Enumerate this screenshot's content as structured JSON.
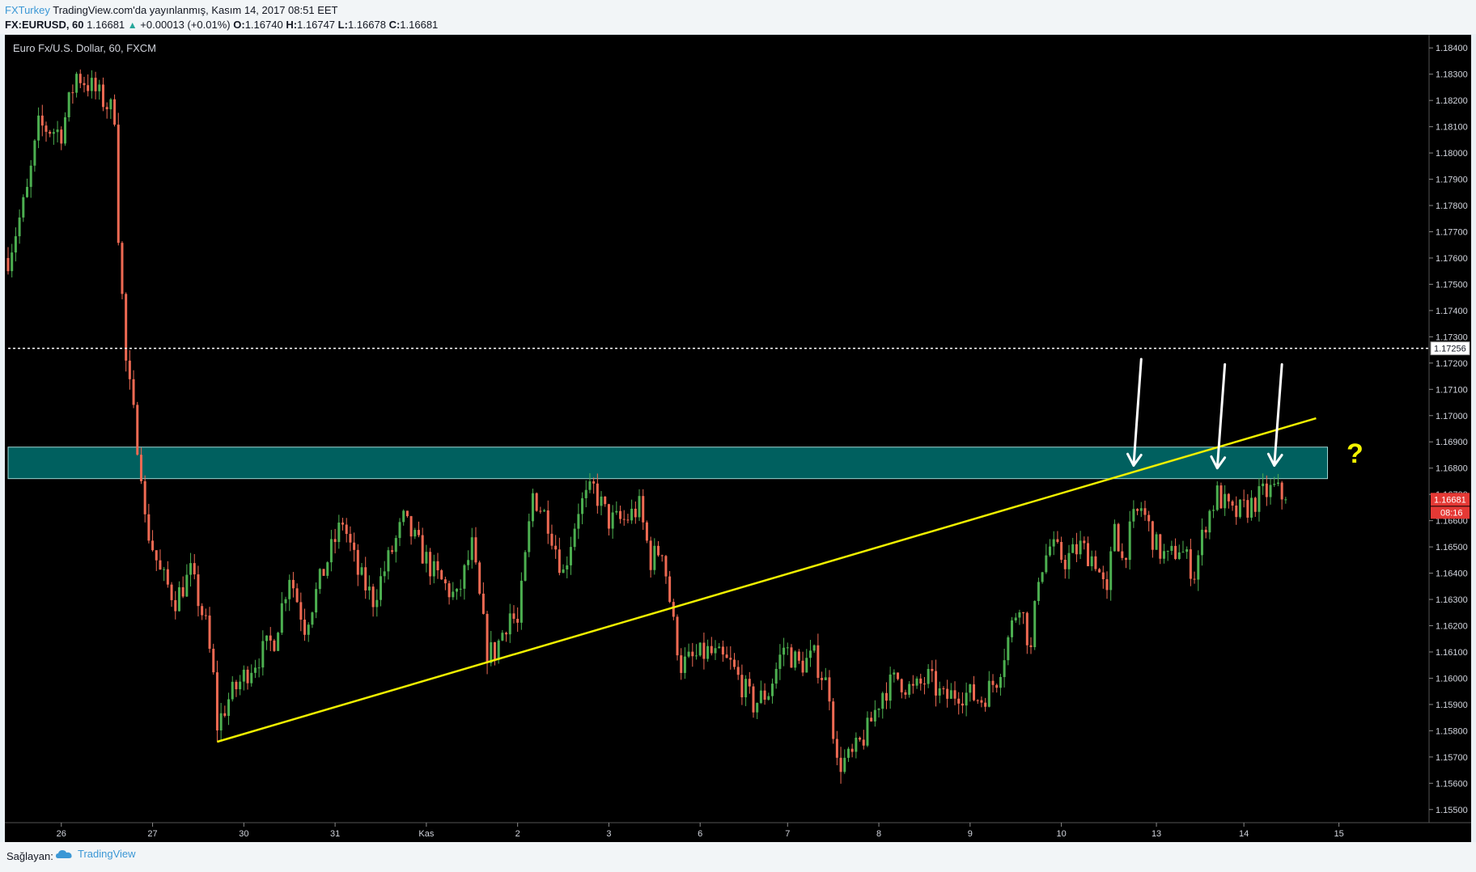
{
  "header": {
    "author": "FXTurkey",
    "published": "TradingView.com'da yayınlanmış, Kasım 14, 2017 08:51 EET",
    "symbol": "FX:EURUSD, 60",
    "last": "1.16681",
    "change_arrow": "▲",
    "change": "+0.00013 (+0.01%)",
    "o_label": "O:",
    "o_value": "1.16740",
    "h_label": "H:",
    "h_value": "1.16747",
    "l_label": "L:",
    "l_value": "1.16678",
    "c_label": "C:",
    "c_value": "1.16681"
  },
  "footer": {
    "provider_label": "Sağlayan:",
    "provider_link": "TradingView",
    "logo_icon": "tradingview-cloud-icon"
  },
  "colors": {
    "background": "#000000",
    "up_candle": "#4caf50",
    "down_candle": "#ef6a53",
    "zone_fill": "#00605f",
    "trendline": "#f0f000",
    "annotation": "#ffffff",
    "question": "#f5f500",
    "price_badge": "#e53935"
  },
  "chart_data": {
    "type": "candlestick",
    "title": "Euro Fx/U.S. Dollar, 60, FXCM",
    "interval": "60",
    "ylim": [
      1.1545,
      1.1845
    ],
    "y_ticks": [
      "1.18400",
      "1.18300",
      "1.18200",
      "1.18100",
      "1.18000",
      "1.17900",
      "1.17800",
      "1.17700",
      "1.17600",
      "1.17500",
      "1.17400",
      "1.17300",
      "1.17200",
      "1.17100",
      "1.17000",
      "1.16900",
      "1.16800",
      "1.16700",
      "1.16600",
      "1.16500",
      "1.16400",
      "1.16300",
      "1.16200",
      "1.16100",
      "1.16000",
      "1.15900",
      "1.15800",
      "1.15700",
      "1.15600",
      "1.15500"
    ],
    "x_ticks": [
      {
        "label": "26",
        "t": 14
      },
      {
        "label": "27",
        "t": 38
      },
      {
        "label": "30",
        "t": 62
      },
      {
        "label": "31",
        "t": 86
      },
      {
        "label": "Kas",
        "t": 110
      },
      {
        "label": "2",
        "t": 134
      },
      {
        "label": "3",
        "t": 158
      },
      {
        "label": "6",
        "t": 182
      },
      {
        "label": "7",
        "t": 205
      },
      {
        "label": "8",
        "t": 229
      },
      {
        "label": "9",
        "t": 253
      },
      {
        "label": "10",
        "t": 277
      },
      {
        "label": "13",
        "t": 302
      },
      {
        "label": "14",
        "t": 325
      },
      {
        "label": "15",
        "t": 350
      }
    ],
    "t_range": [
      0,
      372
    ],
    "anchors": [
      [
        0,
        1.176
      ],
      [
        5,
        1.1785
      ],
      [
        8,
        1.181
      ],
      [
        14,
        1.1808
      ],
      [
        18,
        1.183
      ],
      [
        22,
        1.1825
      ],
      [
        28,
        1.1815
      ],
      [
        29,
        1.177
      ],
      [
        31,
        1.172
      ],
      [
        33,
        1.17
      ],
      [
        35,
        1.168
      ],
      [
        36,
        1.166
      ],
      [
        40,
        1.164
      ],
      [
        44,
        1.163
      ],
      [
        48,
        1.164
      ],
      [
        52,
        1.162
      ],
      [
        54,
        1.16
      ],
      [
        55,
        1.1582
      ],
      [
        58,
        1.1592
      ],
      [
        64,
        1.1605
      ],
      [
        70,
        1.1615
      ],
      [
        74,
        1.164
      ],
      [
        78,
        1.162
      ],
      [
        84,
        1.1645
      ],
      [
        88,
        1.166
      ],
      [
        92,
        1.164
      ],
      [
        96,
        1.163
      ],
      [
        100,
        1.1645
      ],
      [
        104,
        1.166
      ],
      [
        108,
        1.165
      ],
      [
        112,
        1.164
      ],
      [
        118,
        1.163
      ],
      [
        122,
        1.165
      ],
      [
        126,
        1.161
      ],
      [
        128,
        1.161
      ],
      [
        132,
        1.1625
      ],
      [
        134,
        1.162
      ],
      [
        138,
        1.167
      ],
      [
        142,
        1.166
      ],
      [
        146,
        1.164
      ],
      [
        150,
        1.1665
      ],
      [
        154,
        1.1672
      ],
      [
        158,
        1.166
      ],
      [
        162,
        1.166
      ],
      [
        166,
        1.1665
      ],
      [
        169,
        1.1645
      ],
      [
        172,
        1.165
      ],
      [
        175,
        1.162
      ],
      [
        177,
        1.1605
      ],
      [
        184,
        1.161
      ],
      [
        190,
        1.1605
      ],
      [
        196,
        1.159
      ],
      [
        200,
        1.1595
      ],
      [
        204,
        1.1612
      ],
      [
        208,
        1.1605
      ],
      [
        212,
        1.1608
      ],
      [
        216,
        1.1595
      ],
      [
        218,
        1.1567
      ],
      [
        222,
        1.157
      ],
      [
        226,
        1.158
      ],
      [
        230,
        1.1595
      ],
      [
        234,
        1.16
      ],
      [
        238,
        1.1595
      ],
      [
        242,
        1.16
      ],
      [
        246,
        1.1592
      ],
      [
        250,
        1.1595
      ],
      [
        256,
        1.1592
      ],
      [
        260,
        1.16
      ],
      [
        262,
        1.161
      ],
      [
        266,
        1.163
      ],
      [
        269,
        1.161
      ],
      [
        271,
        1.164
      ],
      [
        274,
        1.165
      ],
      [
        278,
        1.1645
      ],
      [
        282,
        1.165
      ],
      [
        286,
        1.1645
      ],
      [
        289,
        1.163
      ],
      [
        291,
        1.166
      ],
      [
        293,
        1.1645
      ],
      [
        296,
        1.166
      ],
      [
        298,
        1.1665
      ],
      [
        302,
        1.165
      ],
      [
        305,
        1.1645
      ],
      [
        308,
        1.165
      ],
      [
        312,
        1.164
      ],
      [
        315,
        1.166
      ],
      [
        318,
        1.167
      ],
      [
        322,
        1.1662
      ],
      [
        326,
        1.1665
      ],
      [
        330,
        1.167
      ],
      [
        333,
        1.1672
      ],
      [
        336,
        1.1668
      ]
    ],
    "last_price": "1.16681",
    "countdown": "08:16",
    "horizontal_line": {
      "value": 1.17256,
      "label": "1.17256",
      "style": "dotted"
    },
    "resistance_zone": {
      "from": 1.1676,
      "to": 1.1688,
      "t_start": 0,
      "t_end": 347
    },
    "trendline": {
      "start": [
        55,
        1.15758
      ],
      "end": [
        344,
        1.1699
      ]
    },
    "annotations": {
      "arrows": [
        {
          "from": [
            298,
            1.17215
          ],
          "to": [
            296,
            1.1681
          ]
        },
        {
          "from": [
            320,
            1.17195
          ],
          "to": [
            318,
            1.168
          ]
        },
        {
          "from": [
            335,
            1.17195
          ],
          "to": [
            333,
            1.1681
          ]
        }
      ],
      "question_mark": {
        "text": "?",
        "at": [
          352,
          1.1682
        ]
      }
    }
  }
}
